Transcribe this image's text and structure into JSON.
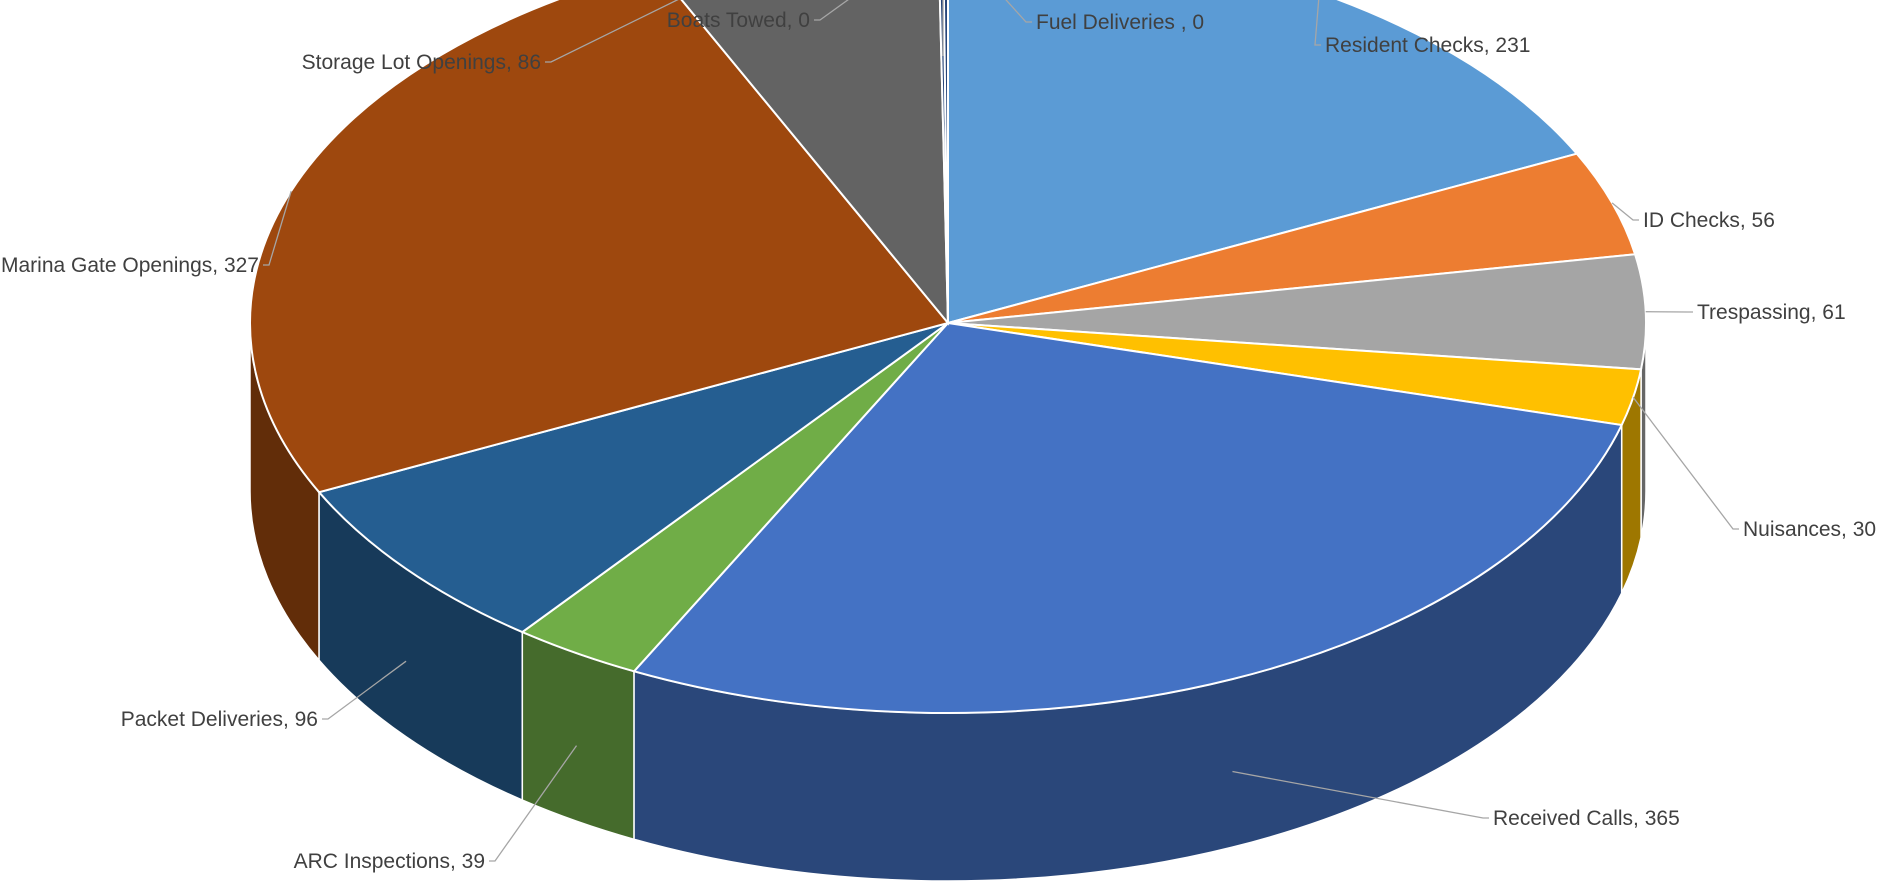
{
  "chart_data": {
    "type": "pie",
    "variant": "3d-pie",
    "title": "",
    "legend": "none",
    "slices": [
      {
        "label": "Resident Checks",
        "value": 231,
        "display": "Resident Checks, 231",
        "color": "#5B9BD5"
      },
      {
        "label": "ID Checks",
        "value": 56,
        "display": "ID Checks, 56",
        "color": "#ED7D31"
      },
      {
        "label": "Trespassing",
        "value": 61,
        "display": "Trespassing, 61",
        "color": "#A5A5A5"
      },
      {
        "label": "Nuisances",
        "value": 30,
        "display": "Nuisances, 30",
        "color": "#FFC000"
      },
      {
        "label": "Received Calls",
        "value": 365,
        "display": "Received Calls, 365",
        "color": "#4472C4"
      },
      {
        "label": "ARC Inspections",
        "value": 39,
        "display": "ARC Inspections, 39",
        "color": "#70AD47"
      },
      {
        "label": "Packet Deliveries",
        "value": 96,
        "display": "Packet Deliveries, 96",
        "color": "#255E91"
      },
      {
        "label": "Marina Gate Openings",
        "value": 327,
        "display": "Marina Gate Openings, 327",
        "color": "#9E480E"
      },
      {
        "label": "Storage Lot Openings",
        "value": 86,
        "display": "Storage Lot Openings, 86",
        "color": "#636363"
      },
      {
        "label": "Boats Towed",
        "value": 0,
        "display": "Boats Towed, 0",
        "color": "#264478"
      },
      {
        "label": "Fuel Deliveries",
        "value": 0,
        "display": "Fuel Deliveries , 0",
        "color": "#264478"
      }
    ]
  }
}
